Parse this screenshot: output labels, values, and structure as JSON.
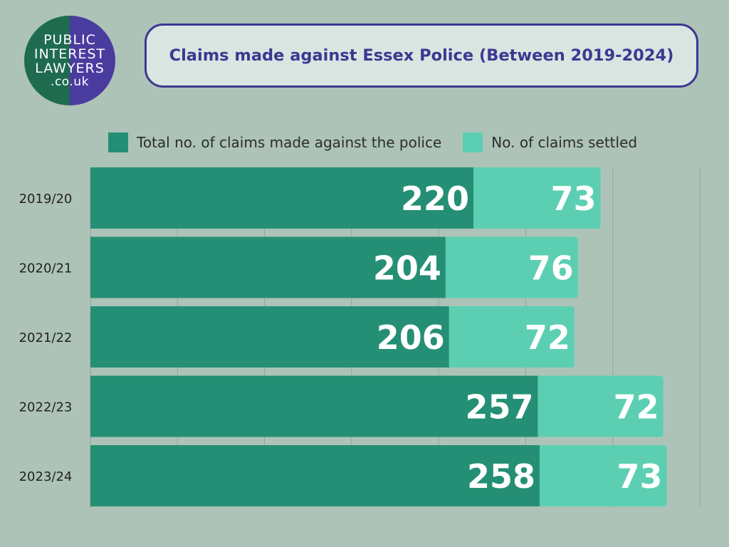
{
  "logo": {
    "line1": "PUBLIC",
    "line2": "INTEREST",
    "line3": "LAWYERS",
    "line4": ".co.uk"
  },
  "colors": {
    "background": "#adc3b8",
    "total": "#248f74",
    "settled": "#5ccfb2",
    "title": "#3d3791"
  },
  "chart_data": {
    "type": "bar",
    "orientation": "horizontal",
    "stacked": true,
    "title": "Claims made against Essex Police (Between 2019-2024)",
    "categories": [
      "2019/20",
      "2020/21",
      "2021/22",
      "2022/23",
      "2023/24"
    ],
    "series": [
      {
        "name": "Total no. of claims made against the police",
        "values": [
          220,
          204,
          206,
          257,
          258
        ]
      },
      {
        "name": "No. of claims settled",
        "values": [
          73,
          76,
          72,
          72,
          73
        ]
      }
    ],
    "xlim": [
      0,
      350
    ],
    "grid": true,
    "legend": "top"
  }
}
